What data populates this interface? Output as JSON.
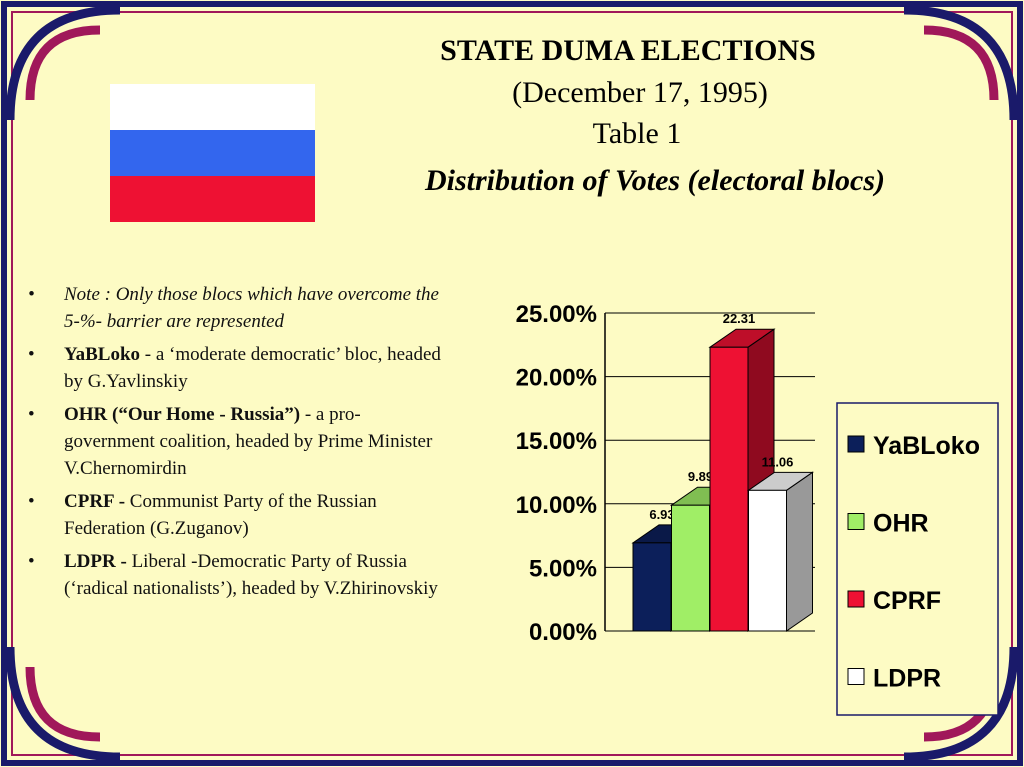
{
  "header": {
    "title": "STATE DUMA ELECTIONS",
    "subtitle": "(December 17, 1995)",
    "table": "Table 1",
    "caption": "Distribution of Votes (electoral blocs)"
  },
  "notes": [
    {
      "bold": "",
      "text": "Note : Only  those blocs which have overcome the 5-%- barrier are represented"
    },
    {
      "bold": "YaBLoko",
      "text": " - a ‘moderate democratic’ bloc,  headed by G.Yavlinskiy"
    },
    {
      "bold": "OHR (“Our Home - Russia”)",
      "text": "  - a pro-government coalition,  headed by Prime Minister V.Chernomirdin"
    },
    {
      "bold": "CPRF -",
      "text": " Communist Party of the Russian Federation (G.Zuganov)"
    },
    {
      "bold": "LDPR -",
      "text": " Liberal -Democratic Party of Russia (‘radical  nationalists’),  headed by V.Zhirinovskiy"
    }
  ],
  "chart_data": {
    "type": "bar3d",
    "categories": [
      "YaBLoko",
      "OHR",
      "CPRF",
      "LDPR"
    ],
    "values": [
      6.93,
      9.89,
      22.31,
      11.06
    ],
    "colors": [
      "#0c1f5a",
      "#a0ee66",
      "#ee1133",
      "#ffffff"
    ],
    "ylim": [
      0,
      25
    ],
    "yticks": [
      {
        "value": 0,
        "label": "0.00%"
      },
      {
        "value": 5,
        "label": "5.00%"
      },
      {
        "value": 10,
        "label": "10.00%"
      },
      {
        "value": 15,
        "label": "15.00%"
      },
      {
        "value": 20,
        "label": "20.00%"
      },
      {
        "value": 25,
        "label": "25.00%"
      }
    ],
    "grid": true,
    "legend": "right"
  }
}
